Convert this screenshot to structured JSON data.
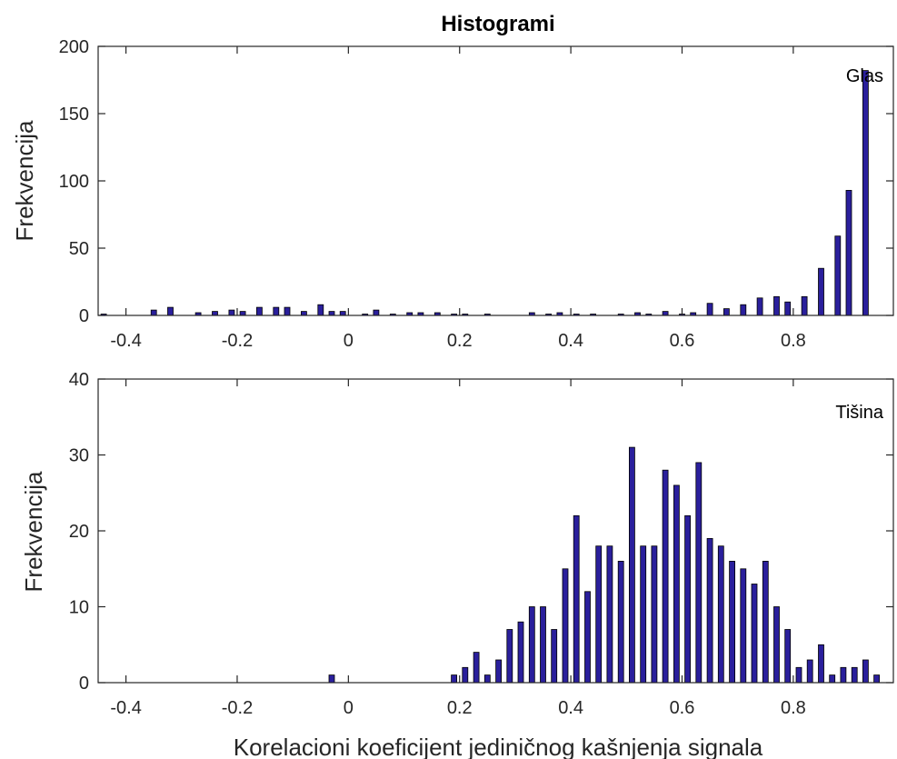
{
  "chart_data": [
    {
      "type": "bar",
      "title": "Histogrami",
      "xlabel": "",
      "ylabel": "Frekvencija",
      "annotation": "Glas",
      "xlim": [
        -0.45,
        0.98
      ],
      "ylim": [
        0,
        200
      ],
      "xticks": [
        "-0.4",
        "-0.2",
        "0",
        "0.2",
        "0.4",
        "0.6",
        "0.8"
      ],
      "yticks": [
        "0",
        "50",
        "100",
        "150",
        "200"
      ],
      "bar_color": "#2a1f9c",
      "x": [
        -0.44,
        -0.35,
        -0.32,
        -0.27,
        -0.24,
        -0.21,
        -0.19,
        -0.16,
        -0.13,
        -0.11,
        -0.08,
        -0.05,
        -0.03,
        -0.01,
        0.03,
        0.05,
        0.08,
        0.11,
        0.13,
        0.16,
        0.19,
        0.21,
        0.25,
        0.33,
        0.36,
        0.38,
        0.41,
        0.44,
        0.49,
        0.52,
        0.54,
        0.57,
        0.6,
        0.62,
        0.65,
        0.68,
        0.71,
        0.74,
        0.77,
        0.79,
        0.82,
        0.85,
        0.88,
        0.9,
        0.93,
        0.96
      ],
      "values": [
        1,
        4,
        6,
        2,
        3,
        4,
        3,
        6,
        6,
        6,
        3,
        8,
        3,
        3,
        1,
        4,
        1,
        2,
        2,
        2,
        1,
        1,
        1,
        2,
        1,
        2,
        1,
        1,
        1,
        2,
        1,
        3,
        1,
        2,
        9,
        5,
        8,
        13,
        14,
        10,
        14,
        35,
        59,
        93,
        182,
        0
      ]
    },
    {
      "type": "bar",
      "title": "",
      "xlabel": "Korelacioni koeficijent jediničnog kašnjenja signala",
      "ylabel": "Frekvencija",
      "annotation": "Tišina",
      "xlim": [
        -0.45,
        0.98
      ],
      "ylim": [
        0,
        40
      ],
      "xticks": [
        "-0.4",
        "-0.2",
        "0",
        "0.2",
        "0.4",
        "0.6",
        "0.8"
      ],
      "yticks": [
        "0",
        "10",
        "20",
        "30",
        "40"
      ],
      "bar_color": "#2a1f9c",
      "x": [
        -0.03,
        0.19,
        0.21,
        0.23,
        0.25,
        0.27,
        0.29,
        0.31,
        0.33,
        0.35,
        0.37,
        0.39,
        0.41,
        0.43,
        0.45,
        0.47,
        0.49,
        0.51,
        0.53,
        0.55,
        0.57,
        0.59,
        0.61,
        0.63,
        0.65,
        0.67,
        0.69,
        0.71,
        0.73,
        0.75,
        0.77,
        0.79,
        0.81,
        0.83,
        0.85,
        0.87,
        0.89,
        0.91,
        0.93,
        0.95
      ],
      "values": [
        1,
        1,
        2,
        4,
        1,
        3,
        7,
        8,
        10,
        10,
        7,
        15,
        22,
        12,
        18,
        18,
        16,
        31,
        18,
        18,
        28,
        26,
        22,
        29,
        19,
        18,
        16,
        15,
        13,
        16,
        10,
        7,
        2,
        3,
        5,
        1,
        2,
        2,
        3,
        1
      ]
    }
  ]
}
